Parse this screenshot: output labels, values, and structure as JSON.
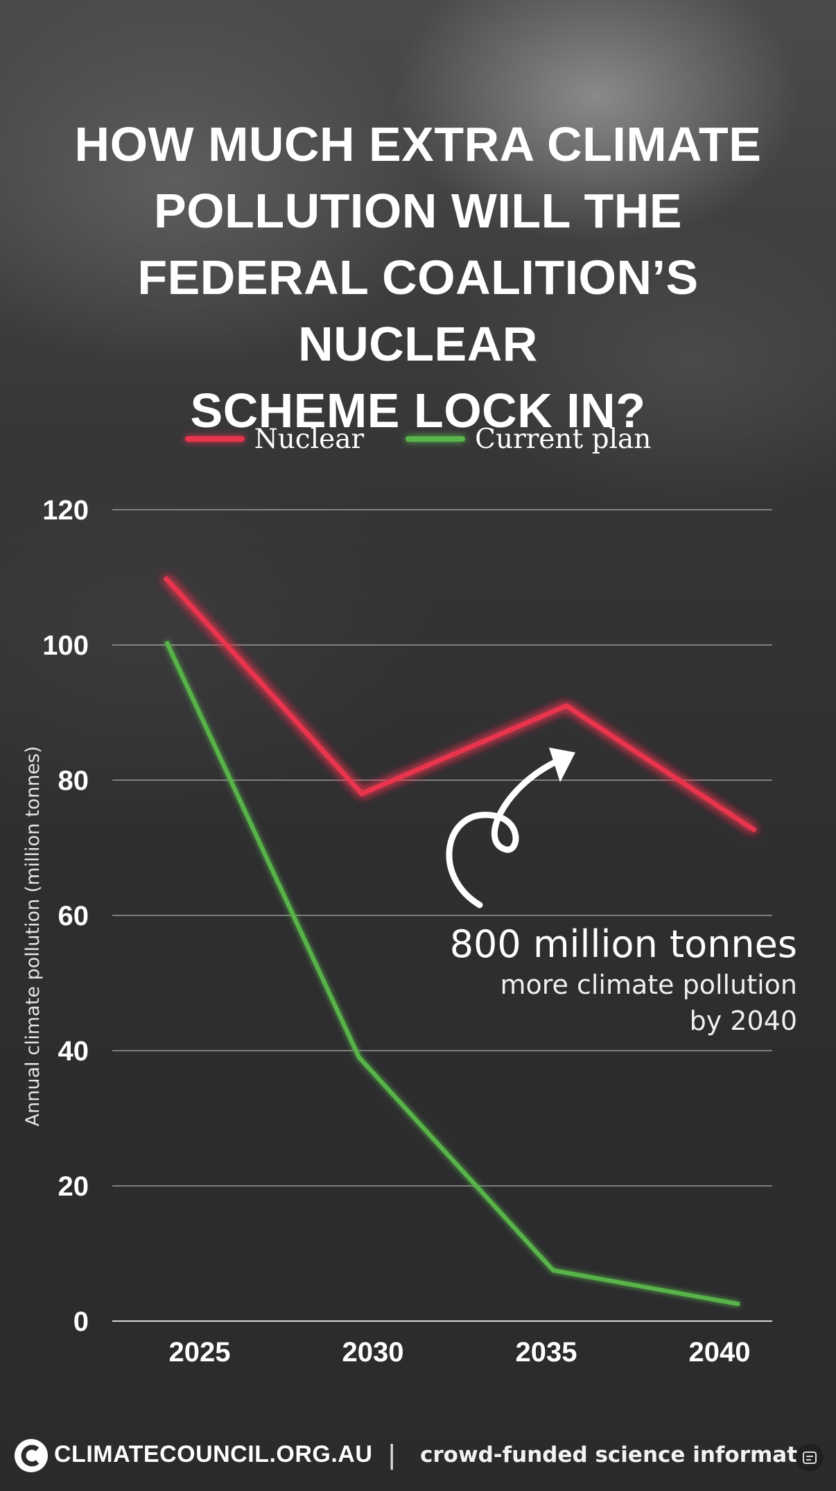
{
  "title": "HOW MUCH EXTRA CLIMATE\nPOLLUTION WILL THE\nFEDERAL COALITION’S NUCLEAR\nSCHEME LOCK IN?",
  "colors": {
    "nuclear": "#e8344d",
    "current": "#59b44a"
  },
  "annotation": {
    "main": "800 million tonnes",
    "sub_line1": "more climate pollution",
    "sub_line2": "by 2040"
  },
  "footer": {
    "brand": "CLIMATECOUNCIL.ORG.AU",
    "separator": "|",
    "tagline": "crowd-funded science informat"
  },
  "icons": {
    "logo": "climate-council-c-icon",
    "menu": "menu-icon",
    "arrow": "curved-arrow-icon"
  },
  "chart_data": {
    "type": "line",
    "title": "HOW MUCH EXTRA CLIMATE POLLUTION WILL THE FEDERAL COALITION’S NUCLEAR SCHEME LOCK IN?",
    "xlabel": "",
    "ylabel": "Annual climate pollution (million tonnes)",
    "x": [
      2025,
      2030,
      2035,
      2040
    ],
    "x_tick_labels": [
      "2025",
      "2030",
      "2035",
      "2040"
    ],
    "y_ticks": [
      0,
      20,
      40,
      60,
      80,
      100,
      120
    ],
    "ylim": [
      0,
      120
    ],
    "grid": true,
    "legend_position": "top-center",
    "series": [
      {
        "name": "Nuclear",
        "values": [
          110,
          78,
          91,
          72.5
        ]
      },
      {
        "name": "Current plan",
        "values": [
          100.5,
          39,
          7.5,
          2.5
        ]
      }
    ]
  }
}
